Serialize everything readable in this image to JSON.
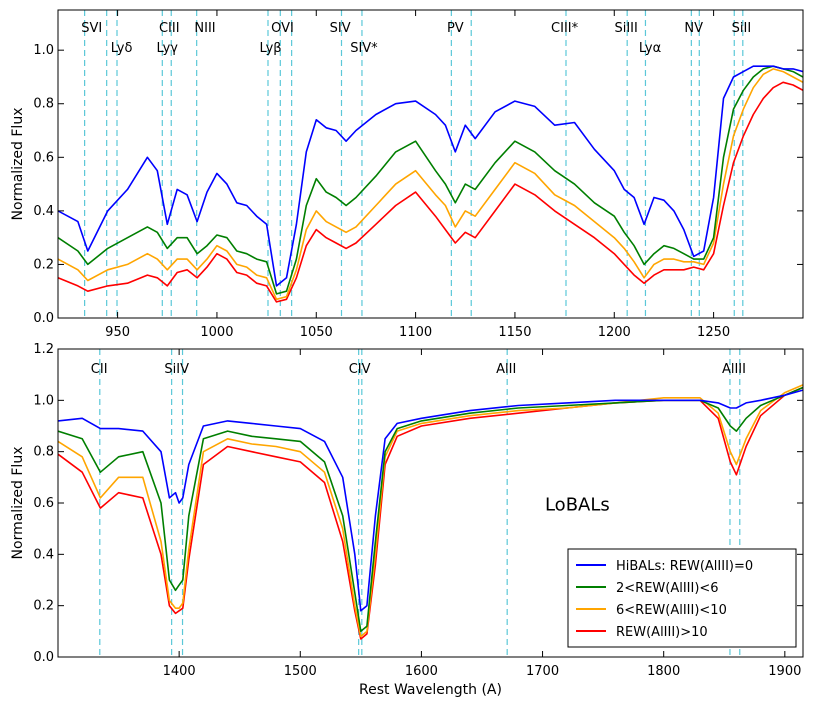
{
  "chart_data": [
    {
      "type": "line",
      "panel": "top",
      "xlim": [
        920,
        1295
      ],
      "ylim": [
        0.0,
        1.15
      ],
      "xticks": [
        950,
        1000,
        1050,
        1100,
        1150,
        1200,
        1250
      ],
      "yticks": [
        0.0,
        0.2,
        0.4,
        0.6,
        0.8,
        1.0
      ],
      "ytick_labels": [
        "0.0",
        "0.2",
        "0.4",
        "0.6",
        "0.8",
        "1.0"
      ],
      "ylabel": "Normalized Flux",
      "xlabel": "",
      "grid": false,
      "line_color": "#5bc8d8",
      "lines": [
        {
          "label": "SVI",
          "wavelengths": [
            933.4,
            944.5
          ]
        },
        {
          "label": "Lyδ",
          "wavelengths": [
            949.7
          ]
        },
        {
          "label": "CIII",
          "wavelengths": [
            977.0
          ]
        },
        {
          "label": "Lyγ",
          "wavelengths": [
            972.5
          ]
        },
        {
          "label": "NIII",
          "wavelengths": [
            989.8
          ]
        },
        {
          "label": "Lyβ",
          "wavelengths": [
            1025.7
          ]
        },
        {
          "label": "OVI",
          "wavelengths": [
            1031.9,
            1037.6
          ]
        },
        {
          "label": "SIV",
          "wavelengths": [
            1062.7
          ]
        },
        {
          "label": "SIV*",
          "wavelengths": [
            1073.0
          ]
        },
        {
          "label": "PV",
          "wavelengths": [
            1118.0,
            1128.0
          ]
        },
        {
          "label": "CIII*",
          "wavelengths": [
            1175.7
          ]
        },
        {
          "label": "SiIII",
          "wavelengths": [
            1206.5
          ]
        },
        {
          "label": "Lyα",
          "wavelengths": [
            1215.7
          ]
        },
        {
          "label": "NV",
          "wavelengths": [
            1238.8,
            1242.8
          ]
        },
        {
          "label": "SiII",
          "wavelengths": [
            1260.4,
            1264.7
          ]
        }
      ],
      "series": [
        {
          "name": "HiBALs: REW(AlIII)=0",
          "color": "#0000ff",
          "x": [
            920,
            930,
            935,
            945,
            955,
            965,
            970,
            975,
            980,
            985,
            990,
            995,
            1000,
            1005,
            1010,
            1015,
            1020,
            1025,
            1030,
            1035,
            1040,
            1045,
            1050,
            1055,
            1060,
            1065,
            1070,
            1080,
            1090,
            1100,
            1110,
            1115,
            1120,
            1125,
            1130,
            1140,
            1150,
            1160,
            1170,
            1180,
            1190,
            1200,
            1205,
            1210,
            1215,
            1220,
            1225,
            1230,
            1235,
            1240,
            1245,
            1250,
            1255,
            1260,
            1265,
            1270,
            1275,
            1280,
            1285,
            1290,
            1295
          ],
          "y": [
            0.4,
            0.36,
            0.25,
            0.4,
            0.48,
            0.6,
            0.55,
            0.35,
            0.48,
            0.46,
            0.36,
            0.47,
            0.54,
            0.5,
            0.43,
            0.42,
            0.38,
            0.35,
            0.12,
            0.15,
            0.35,
            0.62,
            0.74,
            0.71,
            0.7,
            0.66,
            0.7,
            0.76,
            0.8,
            0.81,
            0.76,
            0.72,
            0.62,
            0.72,
            0.67,
            0.77,
            0.81,
            0.79,
            0.72,
            0.73,
            0.63,
            0.55,
            0.48,
            0.45,
            0.35,
            0.45,
            0.44,
            0.4,
            0.33,
            0.23,
            0.25,
            0.45,
            0.82,
            0.9,
            0.92,
            0.94,
            0.94,
            0.94,
            0.93,
            0.93,
            0.92
          ]
        },
        {
          "name": "2<REW(AlIII)<6",
          "color": "#007f00",
          "x": [
            920,
            930,
            935,
            945,
            955,
            965,
            970,
            975,
            980,
            985,
            990,
            995,
            1000,
            1005,
            1010,
            1015,
            1020,
            1025,
            1030,
            1035,
            1040,
            1045,
            1050,
            1055,
            1060,
            1065,
            1070,
            1080,
            1090,
            1100,
            1110,
            1115,
            1120,
            1125,
            1130,
            1140,
            1150,
            1160,
            1170,
            1180,
            1190,
            1200,
            1205,
            1210,
            1215,
            1220,
            1225,
            1230,
            1235,
            1240,
            1245,
            1250,
            1255,
            1260,
            1265,
            1270,
            1275,
            1280,
            1285,
            1290,
            1295
          ],
          "y": [
            0.3,
            0.25,
            0.2,
            0.26,
            0.3,
            0.34,
            0.32,
            0.26,
            0.3,
            0.3,
            0.24,
            0.27,
            0.31,
            0.3,
            0.25,
            0.24,
            0.22,
            0.21,
            0.09,
            0.1,
            0.22,
            0.42,
            0.52,
            0.47,
            0.45,
            0.42,
            0.45,
            0.53,
            0.62,
            0.66,
            0.55,
            0.5,
            0.43,
            0.5,
            0.48,
            0.58,
            0.66,
            0.62,
            0.55,
            0.5,
            0.43,
            0.38,
            0.32,
            0.27,
            0.2,
            0.24,
            0.27,
            0.26,
            0.24,
            0.22,
            0.22,
            0.3,
            0.6,
            0.78,
            0.85,
            0.9,
            0.93,
            0.94,
            0.93,
            0.92,
            0.9
          ]
        },
        {
          "name": "6<REW(AlIII)<10",
          "color": "#ffa500",
          "x": [
            920,
            930,
            935,
            945,
            955,
            965,
            970,
            975,
            980,
            985,
            990,
            995,
            1000,
            1005,
            1010,
            1015,
            1020,
            1025,
            1030,
            1035,
            1040,
            1045,
            1050,
            1055,
            1060,
            1065,
            1070,
            1080,
            1090,
            1100,
            1110,
            1115,
            1120,
            1125,
            1130,
            1140,
            1150,
            1160,
            1170,
            1180,
            1190,
            1200,
            1205,
            1210,
            1215,
            1220,
            1225,
            1230,
            1235,
            1240,
            1245,
            1250,
            1255,
            1260,
            1265,
            1270,
            1275,
            1280,
            1285,
            1290,
            1295
          ],
          "y": [
            0.22,
            0.18,
            0.14,
            0.18,
            0.2,
            0.24,
            0.22,
            0.18,
            0.22,
            0.22,
            0.18,
            0.22,
            0.27,
            0.25,
            0.2,
            0.19,
            0.16,
            0.15,
            0.07,
            0.08,
            0.18,
            0.33,
            0.4,
            0.36,
            0.34,
            0.32,
            0.34,
            0.42,
            0.5,
            0.55,
            0.46,
            0.42,
            0.34,
            0.4,
            0.38,
            0.48,
            0.58,
            0.54,
            0.46,
            0.42,
            0.36,
            0.3,
            0.26,
            0.21,
            0.15,
            0.2,
            0.22,
            0.22,
            0.21,
            0.21,
            0.2,
            0.28,
            0.5,
            0.68,
            0.78,
            0.86,
            0.91,
            0.93,
            0.92,
            0.9,
            0.88
          ]
        },
        {
          "name": "REW(AlIII)>10",
          "color": "#ff0000",
          "x": [
            920,
            930,
            935,
            945,
            955,
            965,
            970,
            975,
            980,
            985,
            990,
            995,
            1000,
            1005,
            1010,
            1015,
            1020,
            1025,
            1030,
            1035,
            1040,
            1045,
            1050,
            1055,
            1060,
            1065,
            1070,
            1080,
            1090,
            1100,
            1110,
            1115,
            1120,
            1125,
            1130,
            1140,
            1150,
            1160,
            1170,
            1180,
            1190,
            1200,
            1205,
            1210,
            1215,
            1220,
            1225,
            1230,
            1235,
            1240,
            1245,
            1250,
            1255,
            1260,
            1265,
            1270,
            1275,
            1280,
            1285,
            1290,
            1295
          ],
          "y": [
            0.15,
            0.12,
            0.1,
            0.12,
            0.13,
            0.16,
            0.15,
            0.12,
            0.17,
            0.18,
            0.15,
            0.19,
            0.24,
            0.22,
            0.17,
            0.16,
            0.13,
            0.12,
            0.06,
            0.07,
            0.15,
            0.27,
            0.33,
            0.3,
            0.28,
            0.26,
            0.28,
            0.35,
            0.42,
            0.47,
            0.38,
            0.33,
            0.28,
            0.32,
            0.3,
            0.4,
            0.5,
            0.46,
            0.4,
            0.35,
            0.3,
            0.24,
            0.2,
            0.16,
            0.13,
            0.16,
            0.18,
            0.18,
            0.18,
            0.19,
            0.18,
            0.24,
            0.42,
            0.58,
            0.68,
            0.76,
            0.82,
            0.86,
            0.88,
            0.87,
            0.85
          ]
        }
      ]
    },
    {
      "type": "line",
      "panel": "bottom",
      "xlim": [
        1300,
        1915
      ],
      "ylim": [
        0.0,
        1.2
      ],
      "xticks": [
        1400,
        1500,
        1600,
        1700,
        1800,
        1900
      ],
      "yticks": [
        0.0,
        0.2,
        0.4,
        0.6,
        0.8,
        1.0,
        1.2
      ],
      "ytick_labels": [
        "0.0",
        "0.2",
        "0.4",
        "0.6",
        "0.8",
        "1.0",
        "1.2"
      ],
      "ylabel": "Normalized Flux",
      "xlabel": "Rest Wavelength (A)",
      "grid": false,
      "annotation": "LoBALs",
      "legend": "lower-right",
      "line_color": "#5bc8d8",
      "lines": [
        {
          "label": "CII",
          "wavelengths": [
            1334.5
          ]
        },
        {
          "label": "SiIV",
          "wavelengths": [
            1393.8,
            1402.8
          ]
        },
        {
          "label": "CIV",
          "wavelengths": [
            1548.2,
            1550.8
          ]
        },
        {
          "label": "AlII",
          "wavelengths": [
            1670.8
          ]
        },
        {
          "label": "AlIII",
          "wavelengths": [
            1854.7,
            1862.8
          ]
        }
      ],
      "series": [
        {
          "name": "HiBALs: REW(AlIII)=0",
          "color": "#0000ff",
          "x": [
            1300,
            1320,
            1335,
            1350,
            1370,
            1385,
            1392,
            1397,
            1400,
            1403,
            1408,
            1420,
            1440,
            1460,
            1480,
            1500,
            1520,
            1535,
            1545,
            1550,
            1555,
            1562,
            1570,
            1580,
            1600,
            1640,
            1680,
            1720,
            1760,
            1800,
            1830,
            1845,
            1855,
            1860,
            1868,
            1880,
            1900,
            1915
          ],
          "y": [
            0.92,
            0.93,
            0.89,
            0.89,
            0.88,
            0.8,
            0.62,
            0.64,
            0.6,
            0.62,
            0.75,
            0.9,
            0.92,
            0.91,
            0.9,
            0.89,
            0.84,
            0.7,
            0.4,
            0.18,
            0.2,
            0.55,
            0.85,
            0.91,
            0.93,
            0.96,
            0.98,
            0.99,
            1.0,
            1.0,
            1.0,
            0.99,
            0.97,
            0.97,
            0.99,
            1.0,
            1.02,
            1.04
          ]
        },
        {
          "name": "2<REW(AlIII)<6",
          "color": "#007f00",
          "x": [
            1300,
            1320,
            1335,
            1350,
            1370,
            1385,
            1392,
            1397,
            1400,
            1403,
            1408,
            1420,
            1440,
            1460,
            1480,
            1500,
            1520,
            1535,
            1545,
            1550,
            1555,
            1562,
            1570,
            1580,
            1600,
            1640,
            1680,
            1720,
            1760,
            1800,
            1830,
            1845,
            1855,
            1860,
            1868,
            1880,
            1900,
            1915
          ],
          "y": [
            0.88,
            0.85,
            0.72,
            0.78,
            0.8,
            0.6,
            0.3,
            0.26,
            0.28,
            0.3,
            0.55,
            0.85,
            0.88,
            0.86,
            0.85,
            0.84,
            0.76,
            0.55,
            0.25,
            0.1,
            0.12,
            0.45,
            0.8,
            0.89,
            0.92,
            0.95,
            0.97,
            0.98,
            0.99,
            1.0,
            1.0,
            0.97,
            0.9,
            0.88,
            0.93,
            0.98,
            1.02,
            1.05
          ]
        },
        {
          "name": "6<REW(AlIII)<10",
          "color": "#ffa500",
          "x": [
            1300,
            1320,
            1335,
            1350,
            1370,
            1385,
            1392,
            1397,
            1400,
            1403,
            1408,
            1420,
            1440,
            1460,
            1480,
            1500,
            1520,
            1535,
            1545,
            1550,
            1555,
            1562,
            1570,
            1580,
            1600,
            1640,
            1680,
            1720,
            1760,
            1800,
            1830,
            1845,
            1855,
            1860,
            1868,
            1880,
            1900,
            1915
          ],
          "y": [
            0.84,
            0.78,
            0.62,
            0.7,
            0.7,
            0.45,
            0.22,
            0.19,
            0.19,
            0.21,
            0.42,
            0.8,
            0.85,
            0.83,
            0.82,
            0.8,
            0.72,
            0.5,
            0.2,
            0.08,
            0.1,
            0.4,
            0.78,
            0.88,
            0.91,
            0.94,
            0.96,
            0.97,
            0.99,
            1.01,
            1.01,
            0.95,
            0.8,
            0.75,
            0.85,
            0.96,
            1.03,
            1.06
          ]
        },
        {
          "name": "REW(AlIII)>10",
          "color": "#ff0000",
          "x": [
            1300,
            1320,
            1335,
            1350,
            1370,
            1385,
            1392,
            1397,
            1400,
            1403,
            1408,
            1420,
            1440,
            1460,
            1480,
            1500,
            1520,
            1535,
            1545,
            1550,
            1555,
            1562,
            1570,
            1580,
            1600,
            1640,
            1680,
            1720,
            1760,
            1800,
            1830,
            1845,
            1855,
            1860,
            1868,
            1880,
            1900,
            1915
          ],
          "y": [
            0.79,
            0.72,
            0.58,
            0.64,
            0.62,
            0.4,
            0.2,
            0.17,
            0.18,
            0.19,
            0.38,
            0.75,
            0.82,
            0.8,
            0.78,
            0.76,
            0.68,
            0.45,
            0.18,
            0.07,
            0.09,
            0.36,
            0.75,
            0.86,
            0.9,
            0.93,
            0.95,
            0.97,
            0.99,
            1.0,
            1.0,
            0.93,
            0.76,
            0.71,
            0.82,
            0.94,
            1.02,
            1.05
          ]
        }
      ]
    }
  ]
}
